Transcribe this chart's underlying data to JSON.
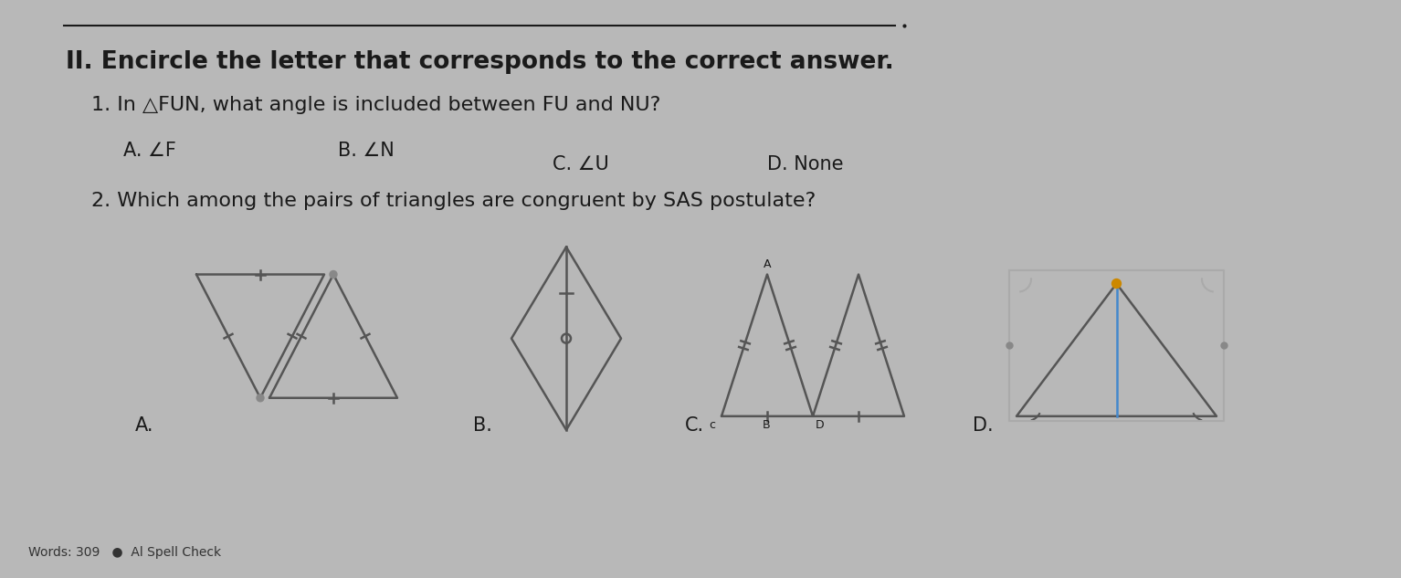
{
  "bg_color": "#b8b8b8",
  "page_bg": "#d4d4d4",
  "content_bg": "#e8e8e6",
  "title": "II. Encircle the letter that corresponds to the correct answer.",
  "q1": "1. In △FUN, what angle is included between FU and NU?",
  "q1_choices": [
    "A. ∠F",
    "B. ∠N",
    "C. ∠U",
    "D. None"
  ],
  "q2": "2. Which among the pairs of triangles are congruent by SAS postulate?",
  "footer": "Words: 309   ●  Al Spell Check",
  "text_color": "#1a1a1a",
  "line_color": "#444444",
  "tri_color": "#555555",
  "title_fontsize": 19,
  "body_fontsize": 16,
  "choice_fontsize": 15,
  "label_fontsize": 15
}
